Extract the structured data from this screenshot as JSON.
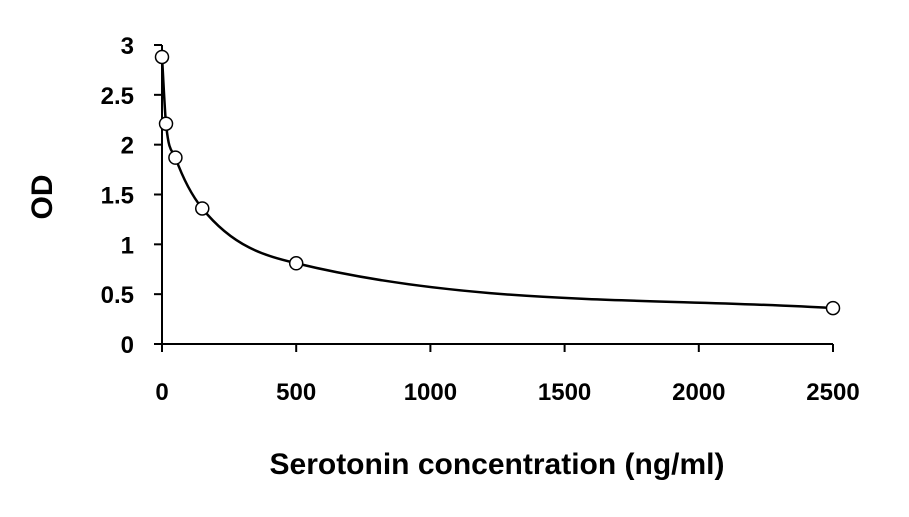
{
  "chart_data": {
    "type": "line",
    "title": "",
    "xlabel": "Serotonin concentration (ng/ml)",
    "ylabel": "OD",
    "xlim": [
      0,
      2500
    ],
    "ylim": [
      0,
      3
    ],
    "xticks": [
      0,
      500,
      1000,
      1500,
      2000,
      2500
    ],
    "xtick_labels": [
      "0",
      "500",
      "1000",
      "1500",
      "2000",
      "2500"
    ],
    "yticks": [
      0,
      0.5,
      1,
      1.5,
      2,
      2.5,
      3
    ],
    "ytick_labels": [
      "0",
      "0.5",
      "1",
      "1.5",
      "2",
      "2.5",
      "3"
    ],
    "grid": false,
    "legend": "none",
    "series": [
      {
        "x": [
          0,
          15,
          50,
          150,
          500,
          2500
        ],
        "y": [
          2.88,
          2.21,
          1.87,
          1.36,
          0.81,
          0.36
        ],
        "marker": "open-circle",
        "smoothed": true
      }
    ]
  }
}
